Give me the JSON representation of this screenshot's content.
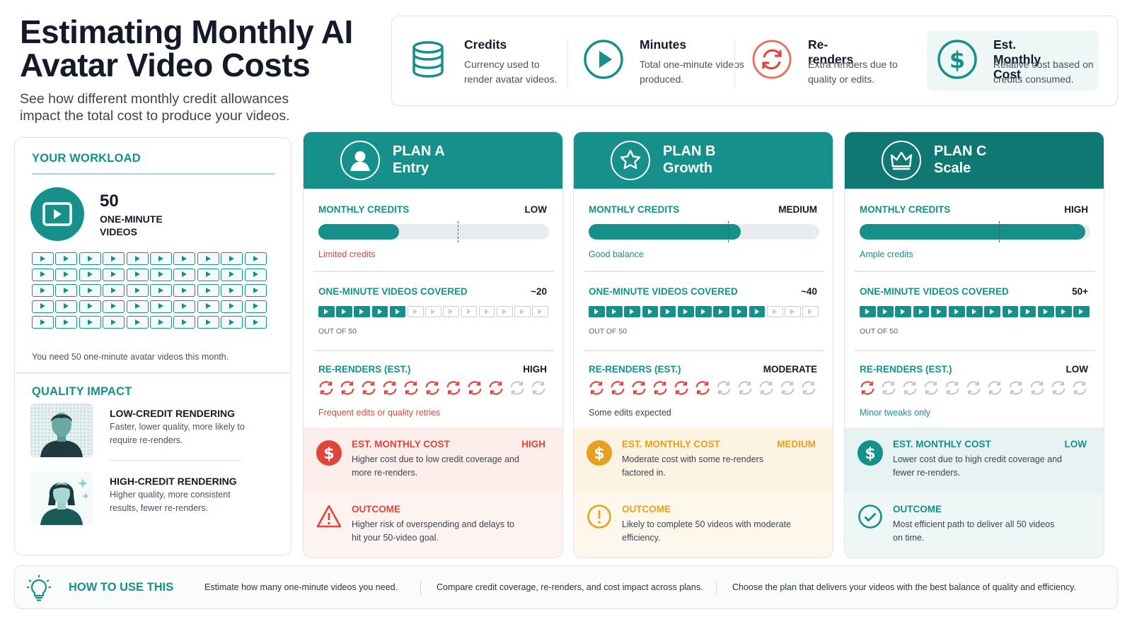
{
  "header": {
    "title": "Estimating Monthly AI Avatar Video Costs",
    "subtitle": "See how different monthly credit allowances impact the total cost to produce your videos."
  },
  "legend": [
    {
      "title": "Credits",
      "desc": "Currency used to render avatar videos.",
      "icon": "coin-stack-icon"
    },
    {
      "title": "Minutes",
      "desc": "Total one-minute videos produced.",
      "icon": "play-circle-icon"
    },
    {
      "title": "Re-renders",
      "desc": "Extra renders due to quality or edits.",
      "icon": "refresh-icon"
    },
    {
      "title": "Est. Monthly Cost",
      "desc": "Relative cost based on credits consumed.",
      "icon": "dollar-circle-icon"
    }
  ],
  "workload": {
    "title": "YOUR WORKLOAD",
    "count": "50",
    "units": "ONE-MINUTE VIDEOS",
    "grid_total": 50,
    "need_text": "You need 50 one-minute avatar videos this month."
  },
  "quality": {
    "title": "QUALITY IMPACT",
    "items": [
      {
        "heading": "LOW-CREDIT RENDERING",
        "desc": "Faster, lower quality, more likely to require re-renders."
      },
      {
        "heading": "HIGH-CREDIT RENDERING",
        "desc": "Higher quality, more consistent results, fewer re-renders."
      }
    ]
  },
  "labels": {
    "monthly_credits": "MONTHLY CREDITS",
    "videos_covered": "ONE-MINUTE VIDEOS COVERED",
    "out_of": "OUT OF 50",
    "rerenders": "RE-RENDERS (EST.)",
    "cost": "EST. MONTHLY COST",
    "outcome": "OUTCOME"
  },
  "plans": [
    {
      "name": "PLAN A",
      "tier": "Entry",
      "icon": "user-icon",
      "header_color": "#15908a",
      "credit_level": "LOW",
      "credit_fraction": 0.35,
      "credit_note": "Limited credits",
      "note_color": "#e0453a",
      "videos_label": "~20",
      "videos_covered": 20,
      "rerender_level": "HIGH",
      "rerenders_active": 9,
      "rerender_note": "Frequent edits or quality retries",
      "rerender_note_color": "#e0453a",
      "rerender_color": "#e0453a",
      "cost_level": "HIGH",
      "cost_desc": "Higher cost due to low credit coverage and more re-renders.",
      "outcome_desc": "Higher risk of overspending and delays to hit your 50-video goal.",
      "accent": "#e0453a",
      "cost_bg": "#fdeeec",
      "out_bg": "#fdf3f1",
      "outcome_icon": "warning-icon"
    },
    {
      "name": "PLAN B",
      "tier": "Growth",
      "icon": "star-icon",
      "header_color": "#15908a",
      "credit_level": "MEDIUM",
      "credit_fraction": 0.66,
      "credit_note": "Good balance",
      "note_color": "#15908a",
      "videos_label": "~40",
      "videos_covered": 40,
      "rerender_level": "MODERATE",
      "rerenders_active": 6,
      "rerender_note": "Some edits expected",
      "rerender_note_color": "#3c4452",
      "rerender_color": "#e0453a",
      "cost_level": "MEDIUM",
      "cost_desc": "Moderate cost with some re-renders factored in.",
      "outcome_desc": "Likely to complete 50 videos with moderate efficiency.",
      "accent": "#e8a020",
      "cost_bg": "#fdf3e3",
      "out_bg": "#fdf7ec",
      "outcome_icon": "alert-circle-icon"
    },
    {
      "name": "PLAN C",
      "tier": "Scale",
      "icon": "crown-icon",
      "header_color": "#0f7873",
      "credit_level": "HIGH",
      "credit_fraction": 0.98,
      "credit_note": "Ample credits",
      "note_color": "#15908a",
      "videos_label": "50+",
      "videos_covered": 50,
      "rerender_level": "LOW",
      "rerenders_active": 1,
      "rerender_note": "Minor tweaks only",
      "rerender_note_color": "#15908a",
      "rerender_color": "#e0453a",
      "cost_level": "LOW",
      "cost_desc": "Lower cost due to high credit coverage and fewer re-renders.",
      "outcome_desc": "Most efficient path to deliver all 50 videos on time.",
      "accent": "#15908a",
      "cost_bg": "#e7f3f2",
      "out_bg": "#eef6f6",
      "outcome_icon": "check-circle-icon"
    }
  ],
  "how_to": {
    "title": "HOW TO USE THIS",
    "icon": "lightbulb-icon",
    "steps": [
      "Estimate how many one-minute videos you need.",
      "Compare credit coverage, re-renders, and cost impact across plans.",
      "Choose the plan that delivers your videos with the best balance of quality and efficiency."
    ]
  }
}
